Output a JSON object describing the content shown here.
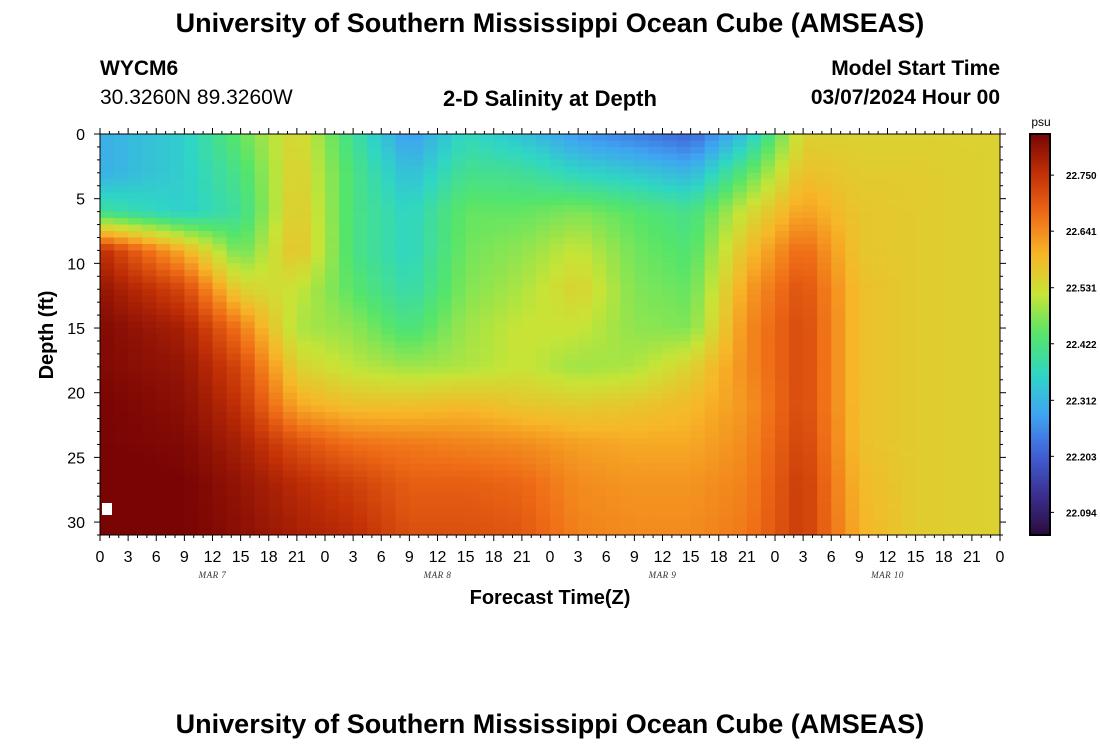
{
  "page": {
    "title_top": "University of Southern Mississippi Ocean Cube (AMSEAS)",
    "title_bottom": "University of Southern Mississippi Ocean Cube (AMSEAS)",
    "station": "WYCM6",
    "coords": "30.3260N  89.3260W",
    "plot_title": "2-D Salinity at Depth",
    "model_start_label": "Model Start Time",
    "model_start_value": "03/07/2024 Hour 00"
  },
  "colors": {
    "ramp": [
      "#2a0b3d",
      "#3b2f8f",
      "#4160d6",
      "#3fa4f2",
      "#2fd6c4",
      "#55e56a",
      "#c7e436",
      "#f7b628",
      "#ef6b16",
      "#c23006",
      "#780404"
    ]
  },
  "chart_data": {
    "type": "heatmap",
    "title": "2-D Salinity at Depth",
    "xlabel": "Forecast Time(Z)",
    "ylabel": "Depth (ft)",
    "x_tick_labels": [
      "0",
      "3",
      "6",
      "9",
      "12",
      "15",
      "18",
      "21",
      "0",
      "3",
      "6",
      "9",
      "12",
      "15",
      "18",
      "21",
      "0",
      "3",
      "6",
      "9",
      "12",
      "15",
      "18",
      "21",
      "0",
      "3",
      "6",
      "9",
      "12",
      "15",
      "18",
      "21",
      "0"
    ],
    "x_range_hours": [
      0,
      96
    ],
    "day_labels": [
      {
        "label": "MAR 7",
        "hour": 12
      },
      {
        "label": "MAR 8",
        "hour": 36
      },
      {
        "label": "MAR 9",
        "hour": 60
      },
      {
        "label": "MAR 10",
        "hour": 84
      }
    ],
    "y_tick_labels": [
      "0",
      "5",
      "10",
      "15",
      "20",
      "25",
      "30"
    ],
    "y_range_ft": [
      0,
      31
    ],
    "colorbar": {
      "unit": "psu",
      "ticks": [
        "22.750",
        "22.641",
        "22.531",
        "22.422",
        "22.312",
        "22.203",
        "22.094"
      ],
      "range": [
        22.05,
        22.83
      ]
    },
    "grid_hours": [
      0,
      9,
      15,
      21,
      27,
      33,
      39,
      45,
      51,
      57,
      63,
      69,
      75,
      81,
      87,
      96
    ],
    "grid_depths_ft": [
      0,
      3,
      6,
      9,
      12,
      15,
      18,
      21,
      24,
      27,
      31
    ],
    "values_psu": [
      [
        22.3,
        22.35,
        22.45,
        22.55,
        22.4,
        22.27,
        22.37,
        22.33,
        22.27,
        22.24,
        22.21,
        22.33,
        22.55,
        22.55,
        22.55,
        22.55
      ],
      [
        22.3,
        22.35,
        22.42,
        22.56,
        22.42,
        22.32,
        22.41,
        22.4,
        22.36,
        22.34,
        22.31,
        22.44,
        22.58,
        22.56,
        22.56,
        22.55
      ],
      [
        22.4,
        22.35,
        22.4,
        22.57,
        22.42,
        22.36,
        22.45,
        22.45,
        22.47,
        22.44,
        22.41,
        22.53,
        22.62,
        22.57,
        22.56,
        22.55
      ],
      [
        22.76,
        22.6,
        22.45,
        22.58,
        22.42,
        22.36,
        22.46,
        22.48,
        22.52,
        22.46,
        22.43,
        22.58,
        22.68,
        22.57,
        22.56,
        22.55
      ],
      [
        22.8,
        22.72,
        22.55,
        22.52,
        22.44,
        22.38,
        22.47,
        22.5,
        22.55,
        22.47,
        22.45,
        22.62,
        22.71,
        22.58,
        22.56,
        22.55
      ],
      [
        22.82,
        22.78,
        22.66,
        22.5,
        22.48,
        22.42,
        22.49,
        22.52,
        22.52,
        22.48,
        22.47,
        22.64,
        22.72,
        22.58,
        22.56,
        22.55
      ],
      [
        22.82,
        22.8,
        22.72,
        22.55,
        22.51,
        22.49,
        22.5,
        22.52,
        22.49,
        22.5,
        22.55,
        22.64,
        22.72,
        22.58,
        22.56,
        22.55
      ],
      [
        22.83,
        22.81,
        22.75,
        22.61,
        22.58,
        22.58,
        22.59,
        22.57,
        22.56,
        22.57,
        22.59,
        22.63,
        22.72,
        22.58,
        22.56,
        22.55
      ],
      [
        22.83,
        22.82,
        22.78,
        22.71,
        22.67,
        22.66,
        22.65,
        22.64,
        22.62,
        22.61,
        22.61,
        22.64,
        22.73,
        22.58,
        22.56,
        22.55
      ],
      [
        22.84,
        22.83,
        22.8,
        22.76,
        22.73,
        22.69,
        22.69,
        22.68,
        22.64,
        22.63,
        22.63,
        22.65,
        22.74,
        22.59,
        22.56,
        22.55
      ],
      [
        22.84,
        22.83,
        22.81,
        22.78,
        22.76,
        22.71,
        22.71,
        22.7,
        22.65,
        22.64,
        22.64,
        22.66,
        22.74,
        22.6,
        22.56,
        22.55
      ]
    ]
  }
}
